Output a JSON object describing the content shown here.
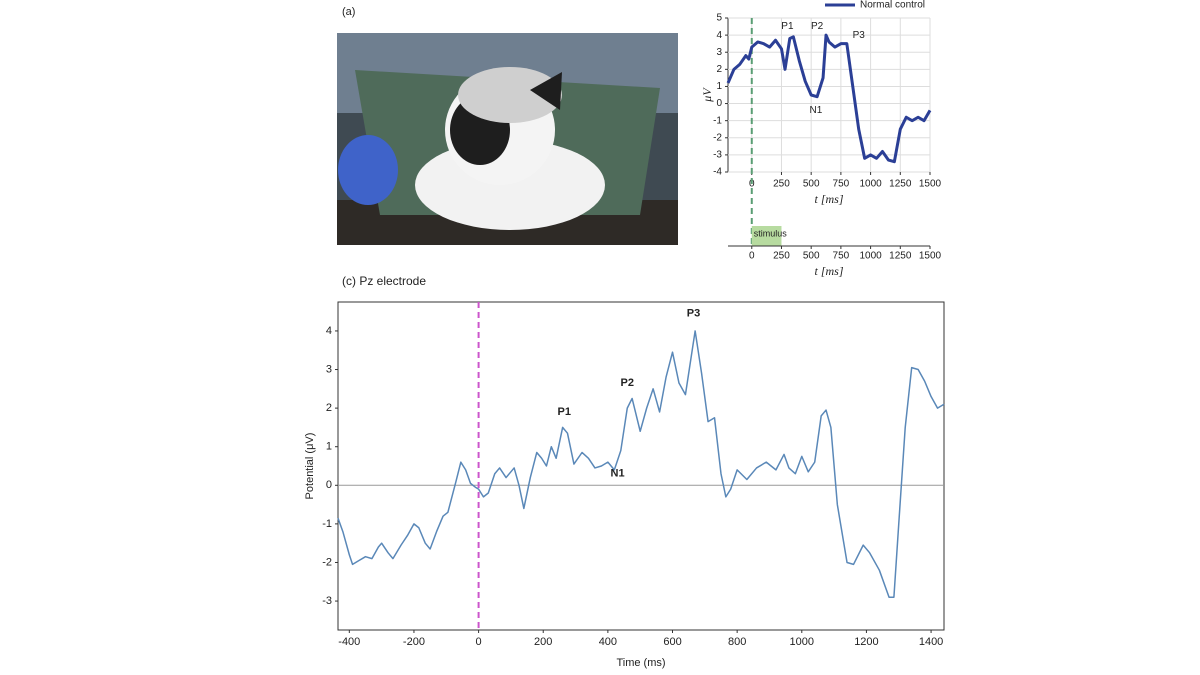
{
  "figure": {
    "panel_a": "(a)"
  },
  "chart_data": [
    {
      "type": "line",
      "legend": "upper right",
      "grid": true,
      "xlabel": "t [ms]",
      "ylabel": "μV",
      "xlim": [
        -200,
        1500
      ],
      "xticks": [
        0,
        250,
        500,
        750,
        1000,
        1250,
        1500
      ],
      "ylim": [
        -4,
        5
      ],
      "yticks": [
        -4,
        -3,
        -2,
        -1,
        0,
        1,
        2,
        3,
        4,
        5
      ],
      "stimulus_line_color": "#5a9e74",
      "annotations": [
        "P1",
        "P2",
        "P3",
        "N1"
      ],
      "x": [
        -200,
        -150,
        -100,
        -50,
        -25,
        0,
        50,
        100,
        150,
        200,
        250,
        280,
        320,
        350,
        400,
        450,
        500,
        550,
        600,
        625,
        650,
        700,
        750,
        800,
        850,
        900,
        950,
        1000,
        1050,
        1100,
        1150,
        1200,
        1250,
        1300,
        1350,
        1400,
        1450,
        1500
      ],
      "series": [
        {
          "name": "Normal control",
          "color": "#2b3f96",
          "values": [
            1.2,
            2.0,
            2.3,
            2.8,
            2.6,
            3.3,
            3.6,
            3.5,
            3.3,
            3.7,
            3.2,
            2.0,
            3.8,
            3.9,
            2.5,
            1.3,
            0.5,
            0.4,
            1.5,
            4.0,
            3.6,
            3.3,
            3.5,
            3.5,
            1.0,
            -1.5,
            -3.2,
            -3.0,
            -3.2,
            -2.8,
            -3.3,
            -3.4,
            -1.5,
            -0.8,
            -1.0,
            -0.8,
            -1.0,
            -0.4
          ]
        }
      ]
    },
    {
      "type": "span",
      "label": "stimulus",
      "color": "#b7dba0",
      "x": [
        0,
        250
      ],
      "xlabel": "t [ms]",
      "xlim": [
        -200,
        1500
      ],
      "xticks": [
        0,
        250,
        500,
        750,
        1000,
        1250,
        1500
      ]
    },
    {
      "type": "line",
      "title": "(c) Pz electrode",
      "xlabel": "Time (ms)",
      "ylabel": "Potential (μV)",
      "xlim": [
        -435,
        1440
      ],
      "xticks": [
        -400,
        -200,
        0,
        200,
        400,
        600,
        800,
        1000,
        1200,
        1400
      ],
      "ylim": [
        -3.75,
        4.75
      ],
      "yticks": [
        -3,
        -2,
        -1,
        0,
        1,
        2,
        3,
        4
      ],
      "stimulus_line_color": "#cc55cc",
      "annotations": [
        "P1",
        "P2",
        "P3",
        "N1"
      ],
      "x": [
        -435,
        -420,
        -400,
        -390,
        -370,
        -350,
        -330,
        -310,
        -300,
        -280,
        -265,
        -240,
        -220,
        -200,
        -185,
        -165,
        -150,
        -130,
        -110,
        -95,
        -70,
        -55,
        -40,
        -25,
        -10,
        0,
        15,
        30,
        50,
        65,
        85,
        110,
        125,
        140,
        160,
        180,
        195,
        210,
        225,
        240,
        260,
        275,
        295,
        320,
        340,
        360,
        380,
        400,
        420,
        440,
        460,
        475,
        500,
        520,
        540,
        560,
        580,
        600,
        620,
        640,
        670,
        690,
        710,
        730,
        750,
        765,
        780,
        800,
        830,
        860,
        890,
        920,
        945,
        960,
        980,
        1000,
        1020,
        1040,
        1060,
        1075,
        1090,
        1110,
        1140,
        1160,
        1190,
        1210,
        1240,
        1270,
        1285,
        1300,
        1320,
        1340,
        1360,
        1380,
        1400,
        1420,
        1440
      ],
      "series": [
        {
          "name": "Pz",
          "color": "#5a88b8",
          "values": [
            -0.85,
            -1.2,
            -1.8,
            -2.05,
            -1.95,
            -1.85,
            -1.9,
            -1.6,
            -1.5,
            -1.75,
            -1.9,
            -1.55,
            -1.3,
            -1.0,
            -1.1,
            -1.5,
            -1.65,
            -1.2,
            -0.8,
            -0.7,
            0.1,
            0.6,
            0.4,
            0.05,
            -0.05,
            -0.1,
            -0.3,
            -0.2,
            0.3,
            0.45,
            0.2,
            0.45,
            0.0,
            -0.6,
            0.2,
            0.85,
            0.7,
            0.5,
            1.0,
            0.7,
            1.5,
            1.35,
            0.55,
            0.85,
            0.7,
            0.45,
            0.5,
            0.6,
            0.4,
            0.9,
            2.0,
            2.25,
            1.4,
            2.0,
            2.5,
            1.9,
            2.8,
            3.45,
            2.65,
            2.35,
            4.0,
            2.9,
            1.65,
            1.75,
            0.3,
            -0.3,
            -0.1,
            0.4,
            0.15,
            0.45,
            0.6,
            0.4,
            0.8,
            0.45,
            0.3,
            0.75,
            0.35,
            0.6,
            1.8,
            1.95,
            1.5,
            -0.5,
            -2.0,
            -2.05,
            -1.55,
            -1.75,
            -2.2,
            -2.9,
            -2.9,
            -1.0,
            1.5,
            3.05,
            3.0,
            2.7,
            2.3,
            2.0,
            2.1
          ]
        }
      ]
    }
  ]
}
